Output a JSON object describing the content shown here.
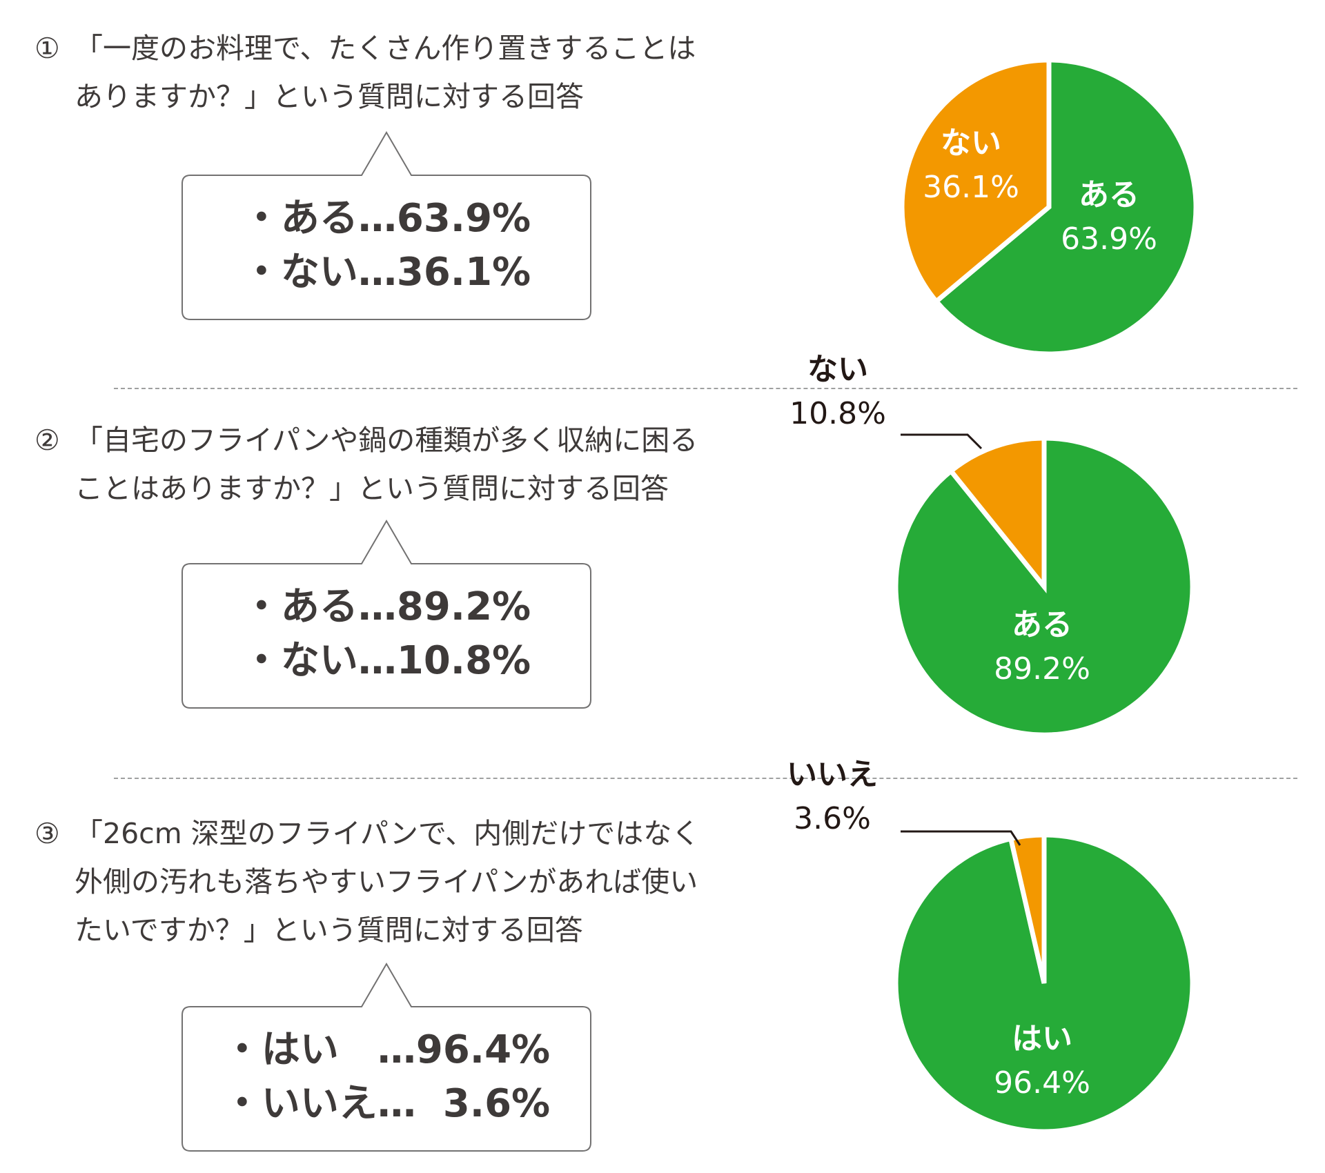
{
  "colors": {
    "green": "#26AB38",
    "orange": "#F39800",
    "stroke": "#ffffff",
    "text": "#3e3a39"
  },
  "sections": [
    {
      "number": "①",
      "question_lines": [
        "「一度のお料理で、たくさん作り置きすることは",
        "ありますか？」という質問に対する回答"
      ],
      "answers": [
        {
          "bullet": "・",
          "label": "ある",
          "sep": "…",
          "value": "63.9%"
        },
        {
          "bullet": "・",
          "label": "ない",
          "sep": "…",
          "value": "36.1%"
        }
      ]
    },
    {
      "number": "②",
      "question_lines": [
        "「自宅のフライパンや鍋の種類が多く収納に困る",
        "ことはありますか？」という質問に対する回答"
      ],
      "answers": [
        {
          "bullet": "・",
          "label": "ある",
          "sep": "…",
          "value": "89.2%"
        },
        {
          "bullet": "・",
          "label": "ない",
          "sep": "…",
          "value": "10.8%"
        }
      ]
    },
    {
      "number": "③",
      "question_lines": [
        "「26cm 深型のフライパンで、内側だけではなく",
        "外側の汚れも落ちやすいフライパンがあれば使い",
        "たいですか？」という質問に対する回答"
      ],
      "answers": [
        {
          "bullet": "・",
          "label": "はい",
          "sep": "…",
          "value": "96.4%"
        },
        {
          "bullet": "・",
          "label": "いいえ",
          "sep": "…",
          "value": "3.6%"
        }
      ]
    }
  ],
  "chart_data": [
    {
      "type": "pie",
      "start": "12 o'clock",
      "direction": "clockwise",
      "slices": [
        {
          "label": "ある",
          "value": 63.9,
          "display": "63.9%",
          "color": "#26AB38"
        },
        {
          "label": "ない",
          "value": 36.1,
          "display": "36.1%",
          "color": "#F39800"
        }
      ]
    },
    {
      "type": "pie",
      "start": "12 o'clock",
      "direction": "clockwise",
      "slices": [
        {
          "label": "ある",
          "value": 89.2,
          "display": "89.2%",
          "color": "#26AB38"
        },
        {
          "label": "ない",
          "value": 10.8,
          "display": "10.8%",
          "color": "#F39800"
        }
      ]
    },
    {
      "type": "pie",
      "start": "12 o'clock",
      "direction": "clockwise",
      "slices": [
        {
          "label": "はい",
          "value": 96.4,
          "display": "96.4%",
          "color": "#26AB38"
        },
        {
          "label": "いいえ",
          "value": 3.6,
          "display": "3.6%",
          "color": "#F39800"
        }
      ]
    }
  ]
}
